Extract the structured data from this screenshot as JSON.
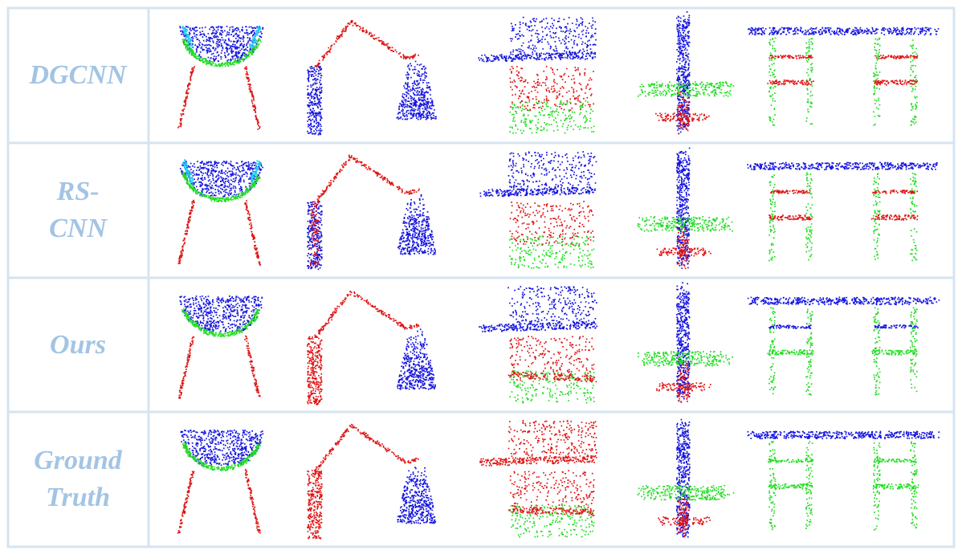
{
  "figure": {
    "rows": [
      {
        "label": [
          "DGCNN"
        ]
      },
      {
        "label": [
          "RS-",
          "CNN"
        ]
      },
      {
        "label": [
          "Ours"
        ]
      },
      {
        "label": [
          "Ground",
          "Truth"
        ]
      }
    ]
  }
}
